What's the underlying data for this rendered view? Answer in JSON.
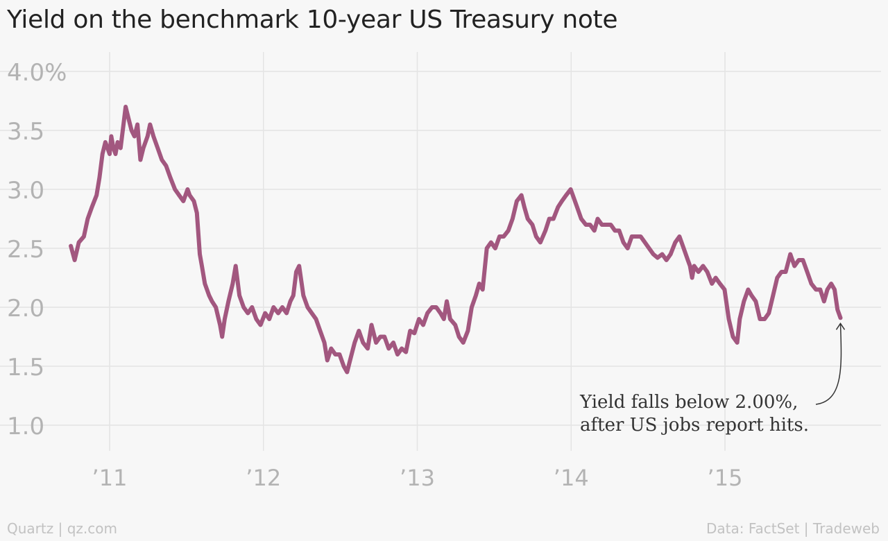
{
  "chart_data": {
    "type": "line",
    "title": "Yield on the benchmark 10-year US Treasury note",
    "xlabel": "",
    "ylabel": "",
    "x_ticks": [
      "’11",
      "’12",
      "’13",
      "’14",
      "’15"
    ],
    "x_tick_years": [
      2011,
      2012,
      2013,
      2014,
      2015
    ],
    "y_ticks": [
      "4.0%",
      "3.5",
      "3.0",
      "2.5",
      "2.0",
      "1.5",
      "1.0"
    ],
    "y_tick_values": [
      4.0,
      3.5,
      3.0,
      2.5,
      2.0,
      1.5,
      1.0
    ],
    "xlim": [
      "2010-09-24",
      "2016-01-31"
    ],
    "ylim": [
      0.8,
      4.2
    ],
    "grid": true,
    "line_color": "#a2577f",
    "series": [
      {
        "x": [
          "2010-10-01",
          "2010-10-10",
          "2010-10-20",
          "2010-11-01",
          "2010-11-10",
          "2010-11-20",
          "2010-12-01",
          "2010-12-08",
          "2010-12-15",
          "2010-12-22",
          "2011-01-01",
          "2011-01-05",
          "2011-01-10",
          "2011-01-15",
          "2011-01-20",
          "2011-01-27",
          "2011-02-03",
          "2011-02-08",
          "2011-02-15",
          "2011-02-22",
          "2011-03-01",
          "2011-03-08",
          "2011-03-15",
          "2011-03-22",
          "2011-04-01",
          "2011-04-07",
          "2011-04-15",
          "2011-04-25",
          "2011-05-05",
          "2011-05-15",
          "2011-05-25",
          "2011-06-05",
          "2011-06-15",
          "2011-06-25",
          "2011-07-05",
          "2011-07-10",
          "2011-07-20",
          "2011-07-27",
          "2011-08-03",
          "2011-08-08",
          "2011-08-15",
          "2011-08-25",
          "2011-09-01",
          "2011-09-10",
          "2011-09-20",
          "2011-09-25",
          "2011-10-01",
          "2011-10-10",
          "2011-10-20",
          "2011-10-27",
          "2011-11-05",
          "2011-11-15",
          "2011-11-25",
          "2011-12-05",
          "2011-12-15",
          "2011-12-25",
          "2012-01-05",
          "2012-01-15",
          "2012-01-25",
          "2012-02-05",
          "2012-02-15",
          "2012-02-25",
          "2012-03-05",
          "2012-03-12",
          "2012-03-19",
          "2012-03-26",
          "2012-04-05",
          "2012-04-15",
          "2012-04-25",
          "2012-05-05",
          "2012-05-15",
          "2012-05-25",
          "2012-06-01",
          "2012-06-10",
          "2012-06-20",
          "2012-06-30",
          "2012-07-10",
          "2012-07-18",
          "2012-07-25",
          "2012-08-05",
          "2012-08-15",
          "2012-08-25",
          "2012-09-05",
          "2012-09-14",
          "2012-09-25",
          "2012-10-05",
          "2012-10-15",
          "2012-10-25",
          "2012-11-05",
          "2012-11-15",
          "2012-11-25",
          "2012-12-05",
          "2012-12-15",
          "2012-12-25",
          "2013-01-05",
          "2013-01-15",
          "2013-01-25",
          "2013-02-05",
          "2013-02-15",
          "2013-02-25",
          "2013-03-05",
          "2013-03-12",
          "2013-03-20",
          "2013-04-01",
          "2013-04-10",
          "2013-04-20",
          "2013-05-01",
          "2013-05-10",
          "2013-05-20",
          "2013-05-28",
          "2013-06-05",
          "2013-06-15",
          "2013-06-25",
          "2013-07-05",
          "2013-07-15",
          "2013-07-25",
          "2013-08-05",
          "2013-08-15",
          "2013-08-25",
          "2013-09-05",
          "2013-09-12",
          "2013-09-20",
          "2013-10-01",
          "2013-10-10",
          "2013-10-20",
          "2013-11-01",
          "2013-11-10",
          "2013-11-20",
          "2013-12-01",
          "2013-12-10",
          "2013-12-20",
          "2013-12-31",
          "2014-01-05",
          "2014-01-15",
          "2014-01-25",
          "2014-02-05",
          "2014-02-15",
          "2014-02-25",
          "2014-03-05",
          "2014-03-15",
          "2014-03-25",
          "2014-04-05",
          "2014-04-15",
          "2014-04-25",
          "2014-05-05",
          "2014-05-15",
          "2014-05-25",
          "2014-06-05",
          "2014-06-15",
          "2014-06-25",
          "2014-07-05",
          "2014-07-15",
          "2014-07-25",
          "2014-08-05",
          "2014-08-15",
          "2014-08-25",
          "2014-09-05",
          "2014-09-15",
          "2014-09-25",
          "2014-10-05",
          "2014-10-10",
          "2014-10-15",
          "2014-10-20",
          "2014-10-30",
          "2014-11-10",
          "2014-11-20",
          "2014-12-01",
          "2014-12-10",
          "2014-12-20",
          "2014-12-31",
          "2015-01-10",
          "2015-01-20",
          "2015-01-30",
          "2015-02-05",
          "2015-02-15",
          "2015-02-25",
          "2015-03-05",
          "2015-03-15",
          "2015-03-25",
          "2015-04-05",
          "2015-04-15",
          "2015-04-25",
          "2015-05-05",
          "2015-05-15",
          "2015-05-25",
          "2015-06-05",
          "2015-06-15",
          "2015-06-25",
          "2015-07-05",
          "2015-07-15",
          "2015-07-25",
          "2015-08-05",
          "2015-08-15",
          "2015-08-24",
          "2015-09-01",
          "2015-09-10",
          "2015-09-18",
          "2015-09-25",
          "2015-10-02"
        ],
        "y": [
          2.52,
          2.4,
          2.55,
          2.6,
          2.75,
          2.85,
          2.95,
          3.1,
          3.3,
          3.4,
          3.3,
          3.45,
          3.35,
          3.3,
          3.4,
          3.35,
          3.55,
          3.7,
          3.6,
          3.5,
          3.45,
          3.55,
          3.25,
          3.35,
          3.45,
          3.55,
          3.45,
          3.35,
          3.25,
          3.2,
          3.1,
          3.0,
          2.95,
          2.9,
          3.0,
          2.95,
          2.9,
          2.8,
          2.45,
          2.35,
          2.2,
          2.1,
          2.05,
          2.0,
          1.85,
          1.75,
          1.9,
          2.05,
          2.2,
          2.35,
          2.1,
          2.0,
          1.95,
          2.0,
          1.9,
          1.85,
          1.95,
          1.9,
          2.0,
          1.95,
          2.0,
          1.95,
          2.05,
          2.1,
          2.3,
          2.35,
          2.1,
          2.0,
          1.95,
          1.9,
          1.8,
          1.7,
          1.55,
          1.65,
          1.6,
          1.6,
          1.5,
          1.45,
          1.55,
          1.7,
          1.8,
          1.7,
          1.65,
          1.85,
          1.7,
          1.75,
          1.75,
          1.65,
          1.7,
          1.6,
          1.65,
          1.62,
          1.8,
          1.78,
          1.9,
          1.85,
          1.95,
          2.0,
          2.0,
          1.95,
          1.9,
          2.05,
          1.9,
          1.85,
          1.75,
          1.7,
          1.8,
          2.0,
          2.1,
          2.2,
          2.15,
          2.5,
          2.55,
          2.5,
          2.6,
          2.6,
          2.65,
          2.75,
          2.9,
          2.95,
          2.85,
          2.75,
          2.7,
          2.6,
          2.55,
          2.65,
          2.75,
          2.75,
          2.85,
          2.9,
          2.95,
          3.0,
          2.95,
          2.85,
          2.75,
          2.7,
          2.7,
          2.65,
          2.75,
          2.7,
          2.7,
          2.7,
          2.65,
          2.65,
          2.55,
          2.5,
          2.6,
          2.6,
          2.6,
          2.55,
          2.5,
          2.45,
          2.42,
          2.45,
          2.4,
          2.45,
          2.55,
          2.6,
          2.5,
          2.4,
          2.35,
          2.25,
          2.35,
          2.3,
          2.35,
          2.3,
          2.2,
          2.25,
          2.2,
          2.15,
          1.9,
          1.75,
          1.7,
          1.9,
          2.05,
          2.15,
          2.1,
          2.05,
          1.9,
          1.9,
          1.95,
          2.1,
          2.25,
          2.3,
          2.3,
          2.45,
          2.35,
          2.4,
          2.4,
          2.3,
          2.2,
          2.15,
          2.15,
          2.05,
          2.15,
          2.2,
          2.15,
          1.98,
          1.91
        ]
      }
    ],
    "annotations": [
      {
        "lines": [
          "Yield falls below 2.00%,",
          "after US jobs report hits."
        ],
        "target_date": "2015-10-02",
        "target_value": 1.91
      }
    ]
  },
  "footer": {
    "source_left": "Quartz | qz.com",
    "source_right": "Data: FactSet | Tradeweb"
  }
}
